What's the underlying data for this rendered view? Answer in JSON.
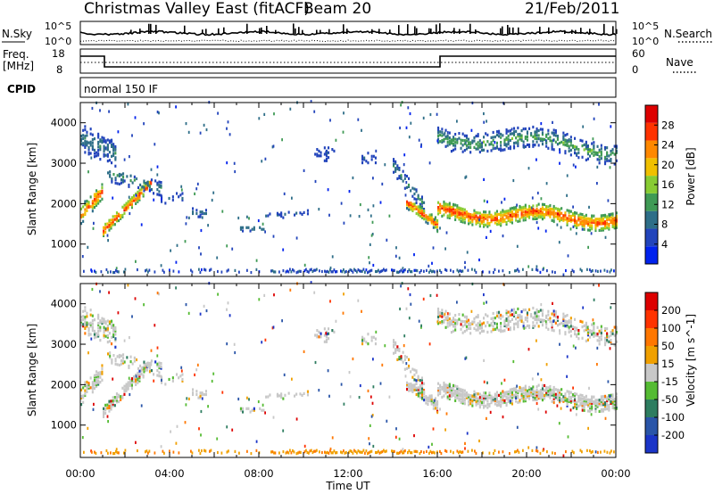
{
  "header": {
    "title": "Christmas Valley East (fitACF)",
    "beam": "Beam 20",
    "date": "21/Feb/2011"
  },
  "status_panels": {
    "nsky_label": "N.Sky",
    "nsearch_label": "N.Search",
    "nsky_ticks": [
      "10^5",
      "10^0"
    ],
    "nsearch_ticks": [
      "10^5",
      "10^0"
    ],
    "freq_label_line1": "Freq.",
    "freq_label_line2": "[MHz]",
    "freq_ticks": [
      "18",
      "8"
    ],
    "nave_label": "Nave",
    "nave_ticks": [
      "60",
      "0"
    ],
    "cpid_label": "CPID",
    "cpid_value": "normal 150 IF"
  },
  "chart_data": [
    {
      "type": "heatmap",
      "title": "",
      "xlabel": "Time UT",
      "ylabel": "Slant Range [km]",
      "x_ticks": [
        "00:00",
        "04:00",
        "08:00",
        "12:00",
        "16:00",
        "20:00",
        "00:00"
      ],
      "x_hours": [
        0,
        24
      ],
      "y_ticks": [
        1000,
        2000,
        3000,
        4000
      ],
      "ylim": [
        200,
        4500
      ],
      "colorbar_label": "Power [dB]",
      "colorbar_ticks": [
        4,
        8,
        12,
        16,
        20,
        24,
        28
      ],
      "colorbar_range": [
        0,
        32
      ],
      "colors": [
        "#0022ee",
        "#2244bb",
        "#2e6e88",
        "#3f9a55",
        "#88cc33",
        "#f0c000",
        "#ff8800",
        "#ff3300",
        "#dd0000"
      ]
    },
    {
      "type": "heatmap",
      "title": "",
      "xlabel": "Time UT",
      "ylabel": "Slant Range [km]",
      "x_ticks": [
        "00:00",
        "04:00",
        "08:00",
        "12:00",
        "16:00",
        "20:00",
        "00:00"
      ],
      "x_hours": [
        0,
        24
      ],
      "y_ticks": [
        1000,
        2000,
        3000,
        4000
      ],
      "ylim": [
        200,
        4500
      ],
      "colorbar_label": "Velocity [m s^-1]",
      "colorbar_ticks": [
        200,
        100,
        50,
        15,
        -15,
        -50,
        -100,
        -200
      ],
      "colors": [
        "#1b35c8",
        "#2a55a8",
        "#2e7d60",
        "#55bb33",
        "#c8c8c8",
        "#f0a000",
        "#ff7700",
        "#ff3300",
        "#dd0000"
      ]
    }
  ]
}
